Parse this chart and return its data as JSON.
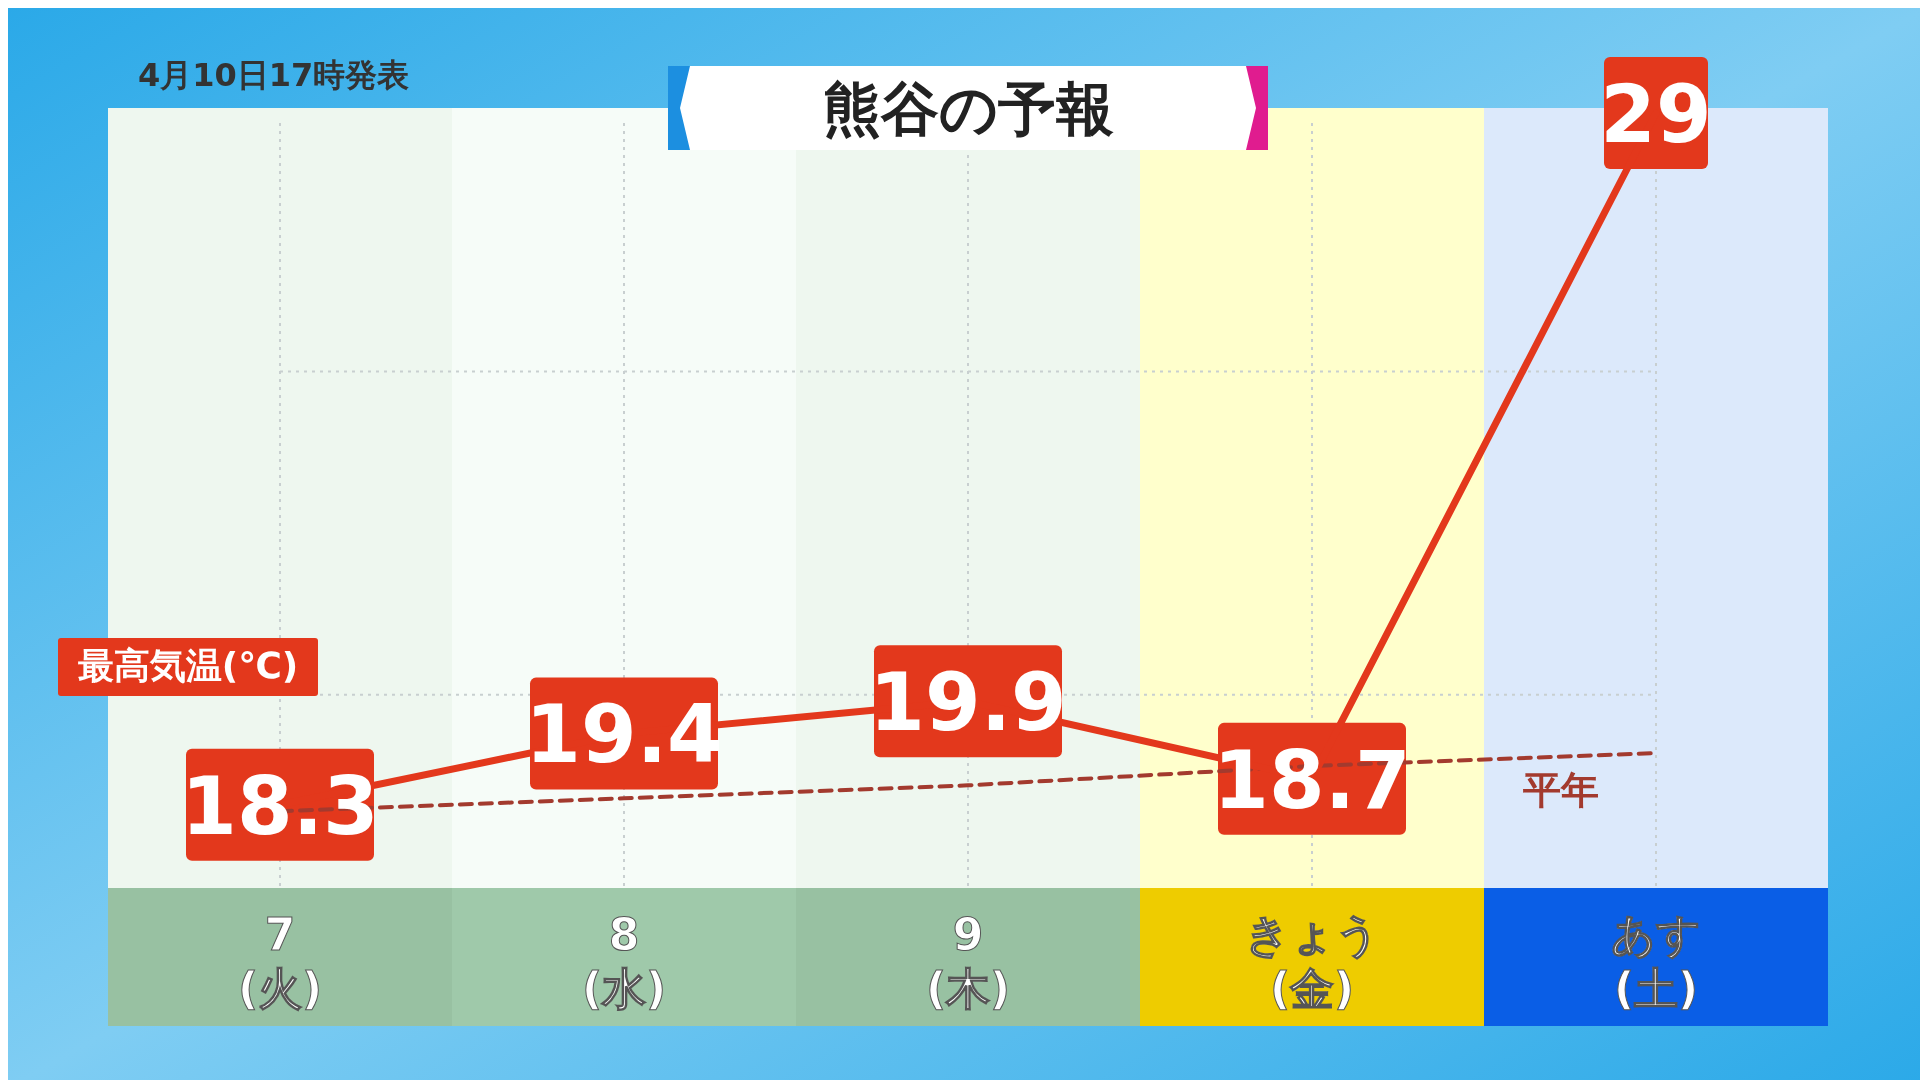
{
  "chart_data": {
    "type": "line",
    "title": "熊谷の予報",
    "subtitle": "4月10日17時発表",
    "ylabel": "最高気温(℃)",
    "categories": [
      "7\n(火)",
      "8\n(水)",
      "9\n(木)",
      "きょう\n(金)",
      "あす\n(土)"
    ],
    "series": [
      {
        "name": null,
        "color": "#e3381c",
        "values": [
          18.3,
          19.4,
          19.9,
          18.7,
          29
        ],
        "value_labels": [
          "18.3",
          "19.4",
          "19.9",
          "18.7",
          "29"
        ],
        "line_style": "solid"
      },
      {
        "name": "平年",
        "color": "#a33a2e",
        "values": [
          18.2,
          18.4,
          18.6,
          18.9,
          19.1
        ],
        "line_style": "dashed"
      }
    ],
    "yticks": [
      {
        "value": 20,
        "label": null
      },
      {
        "value": 25,
        "label": null
      }
    ],
    "grid": true,
    "marker": "none",
    "bands": [
      {
        "axis": "x",
        "from": "きょう\n(金)",
        "to": "きょう\n(金)",
        "color": "#ffffcc"
      },
      {
        "axis": "x",
        "from": "あす\n(土)",
        "to": "あす\n(土)",
        "color": "#dce9fb"
      }
    ]
  }
}
